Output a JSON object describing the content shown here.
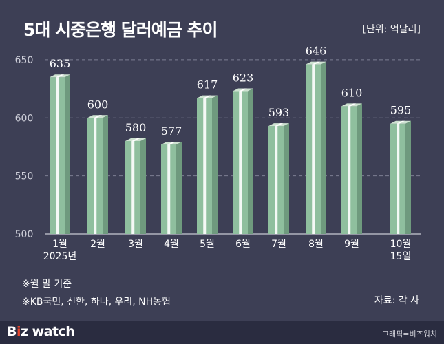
{
  "header": {
    "title": "5대 시중은행 달러예금 추이",
    "unit": "[단위: 억달러]"
  },
  "chart_data": {
    "type": "bar",
    "title": "5대 시중은행 달러예금 추이",
    "unit": "억달러",
    "categories": [
      "1월\n2025년",
      "2월",
      "3월",
      "4월",
      "5월",
      "6월",
      "7월",
      "8월",
      "9월",
      "10월\n15일"
    ],
    "values": [
      635,
      600,
      580,
      577,
      617,
      623,
      593,
      646,
      610,
      595
    ],
    "ylim": [
      500,
      660
    ],
    "yticks": [
      500,
      550,
      600,
      650
    ],
    "grid": true,
    "colors": {
      "bar_front": "#8fbf9e",
      "bar_side": "#6f9a7e",
      "bar_top": "#cfe3d2",
      "grid": "#7d7f93",
      "axis_text": "#cfd0da",
      "value_text": "#ffffff"
    }
  },
  "notes": [
    "※월 말 기준",
    "※KB국민, 신한, 하나, 우리, NH농협"
  ],
  "source": "자료: 각 사",
  "footer": {
    "logo_b": "B",
    "logo_dot": "i",
    "logo_z": "z",
    "logo_watch": "watch",
    "credit": "그래픽=비즈워치"
  }
}
